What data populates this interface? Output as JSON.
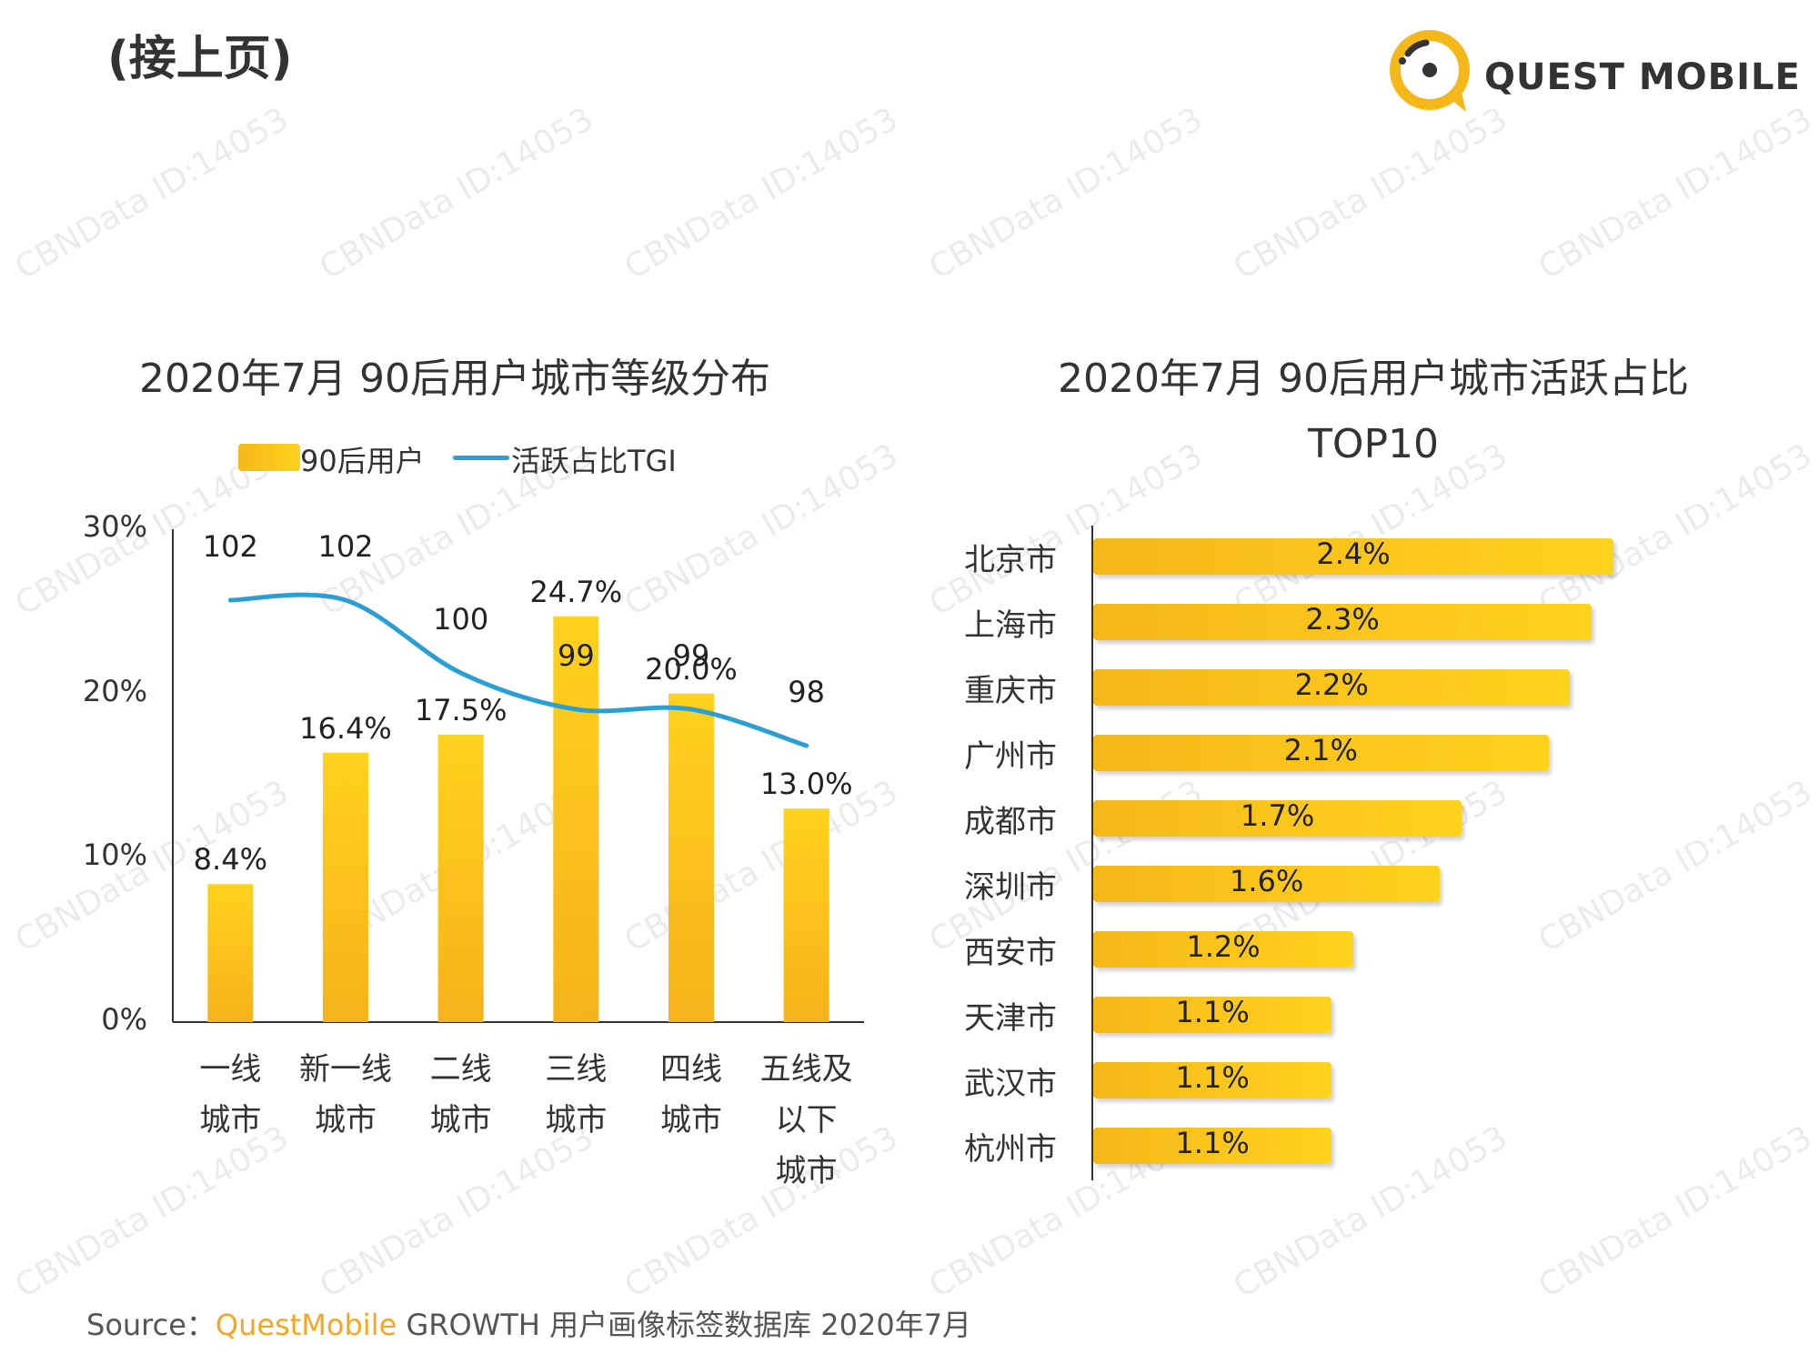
{
  "page_continued": "(接上页)",
  "brand": {
    "logo_text": "QUEST MOBILE",
    "accent": "#f5b81a",
    "line_color": "#2a9fd3"
  },
  "source": {
    "prefix": "Source：",
    "brand": "QuestMobile",
    "rest": " GROWTH 用户画像标签数据库 2020年7月"
  },
  "watermark_text": "CBNData ID:14053",
  "chart_data": [
    {
      "type": "bar",
      "title": "2020年7月 90后用户城市等级分布",
      "legend": [
        "90后用户",
        "活跃占比TGI"
      ],
      "categories": [
        [
          "一线",
          "城市"
        ],
        [
          "新一线",
          "城市"
        ],
        [
          "二线",
          "城市"
        ],
        [
          "三线",
          "城市"
        ],
        [
          "四线",
          "城市"
        ],
        [
          "五线及",
          "以下",
          "城市"
        ]
      ],
      "yticks": [
        "30%",
        "20%",
        "10%",
        "0%"
      ],
      "ylim": [
        0,
        30
      ],
      "series": [
        {
          "name": "90后用户",
          "type": "bar",
          "values": [
            8.4,
            16.4,
            17.5,
            24.7,
            20.0,
            13.0
          ],
          "labels": [
            "8.4%",
            "16.4%",
            "17.5%",
            "24.7%",
            "20.0%",
            "13.0%"
          ]
        },
        {
          "name": "活跃占比TGI",
          "type": "line",
          "values": [
            102,
            102,
            100,
            99,
            99,
            98
          ],
          "labels": [
            "102",
            "102",
            "100",
            "99",
            "99",
            "98"
          ]
        }
      ]
    },
    {
      "type": "bar",
      "orientation": "horizontal",
      "title": "2020年7月 90后用户城市活跃占比",
      "subtitle": "TOP10",
      "categories": [
        "北京市",
        "上海市",
        "重庆市",
        "广州市",
        "成都市",
        "深圳市",
        "西安市",
        "天津市",
        "武汉市",
        "杭州市"
      ],
      "values": [
        2.4,
        2.3,
        2.2,
        2.1,
        1.7,
        1.6,
        1.2,
        1.1,
        1.1,
        1.1
      ],
      "labels": [
        "2.4%",
        "2.3%",
        "2.2%",
        "2.1%",
        "1.7%",
        "1.6%",
        "1.2%",
        "1.1%",
        "1.1%",
        "1.1%"
      ],
      "xlim": [
        0,
        2.4
      ]
    }
  ]
}
